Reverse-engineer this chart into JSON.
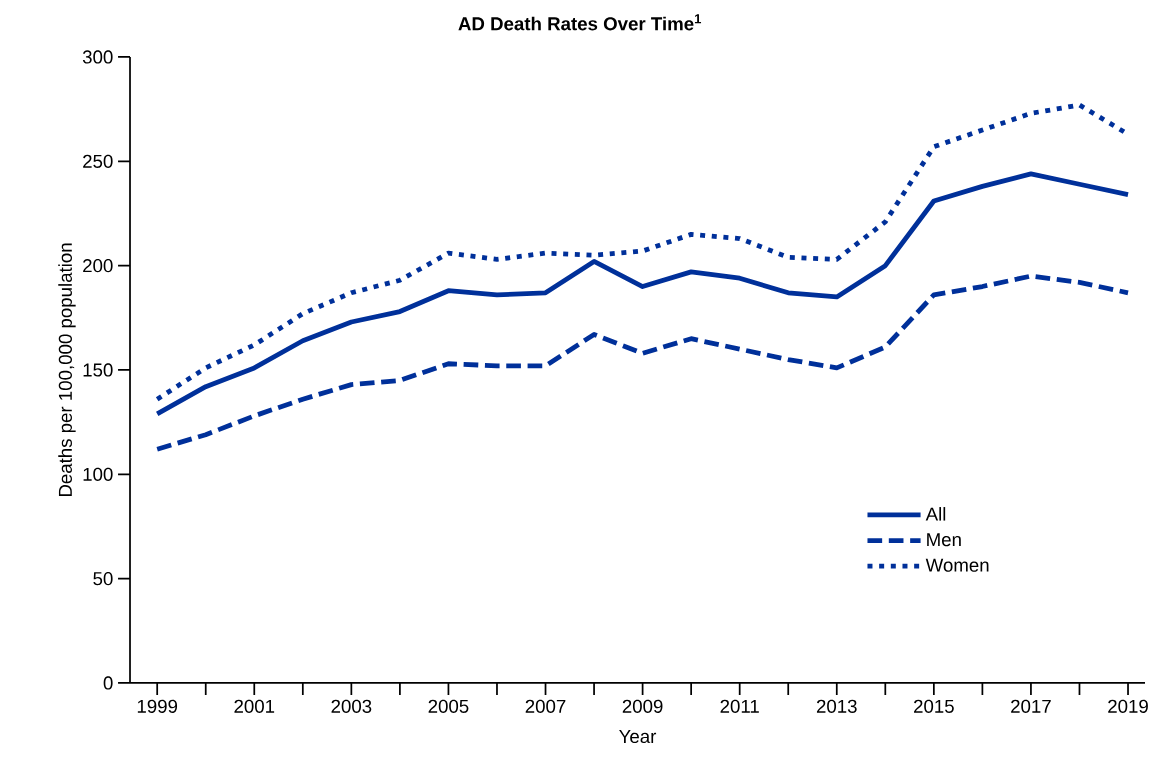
{
  "chart_data": {
    "type": "line",
    "title": "AD Death Rates Over Time$^{1}$",
    "xlabel": "Year",
    "ylabel": "Deaths per  100,000 population",
    "x": [
      1999,
      2000,
      2001,
      2002,
      2003,
      2004,
      2005,
      2006,
      2007,
      2008,
      2009,
      2010,
      2011,
      2012,
      2013,
      2014,
      2015,
      2016,
      2017,
      2018,
      2019
    ],
    "series": [
      {
        "name": "All",
        "color": "#00309a",
        "line_style": "solid",
        "values": [
          129,
          142,
          151,
          164,
          173,
          178,
          188,
          186,
          187,
          202,
          190,
          197,
          194,
          187,
          185,
          200,
          231,
          238,
          244,
          239,
          234
        ]
      },
      {
        "name": "Men",
        "color": "#00309a",
        "line_style": "dashed",
        "values": [
          112,
          119,
          128,
          136,
          143,
          145,
          153,
          152,
          152,
          167,
          158,
          165,
          160,
          155,
          151,
          161,
          186,
          190,
          195,
          192,
          187
        ]
      },
      {
        "name": "Women",
        "color": "#00309a",
        "line_style": "dotted",
        "values": [
          136,
          151,
          162,
          177,
          187,
          193,
          206,
          203,
          206,
          205,
          207,
          215,
          213,
          204,
          203,
          221,
          257,
          265,
          273,
          277,
          263
        ]
      }
    ],
    "xlim": [
      1998.44,
      2019.35
    ],
    "ylim": [
      0,
      300
    ],
    "xticks": [
      1999,
      {
        "value": 2000,
        "label": null
      },
      2001,
      {
        "value": 2002,
        "label": null
      },
      2003,
      {
        "value": 2004,
        "label": null
      },
      2005,
      {
        "value": 2006,
        "label": null
      },
      2007,
      {
        "value": 2008,
        "label": null
      },
      2009,
      {
        "value": 2010,
        "label": null
      },
      2011,
      {
        "value": 2012,
        "label": null
      },
      2013,
      {
        "value": 2014,
        "label": null
      },
      2015,
      {
        "value": 2016,
        "label": null
      },
      2017,
      {
        "value": 2018,
        "label": null
      },
      2019
    ],
    "yticks": [
      0,
      50,
      100,
      150,
      200,
      250,
      300
    ],
    "grid": false,
    "legend": "bottom right",
    "marker": "none"
  }
}
